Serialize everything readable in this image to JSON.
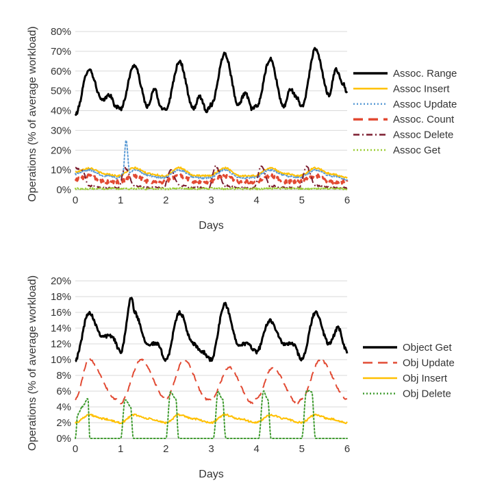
{
  "chart_data": [
    {
      "type": "line",
      "xlabel": "Days",
      "ylabel": "Operations (% of average workload)",
      "xlim": [
        0,
        6
      ],
      "ylim": [
        0,
        80
      ],
      "x_ticks": [
        "0",
        "1",
        "2",
        "3",
        "4",
        "5",
        "6"
      ],
      "y_ticks": [
        "0%",
        "10%",
        "20%",
        "30%",
        "40%",
        "50%",
        "60%",
        "70%",
        "80%"
      ],
      "grid": "horizontal",
      "legend_position": "right",
      "series": [
        {
          "name": "Assoc. Range",
          "color": "#000000",
          "style": "solid",
          "width": 3,
          "x": [
            0.0,
            0.3,
            0.6,
            0.75,
            0.9,
            1.0,
            1.3,
            1.6,
            1.75,
            1.9,
            2.0,
            2.3,
            2.6,
            2.75,
            2.9,
            3.0,
            3.3,
            3.6,
            3.75,
            3.9,
            4.0,
            4.3,
            4.6,
            4.75,
            4.9,
            5.0,
            5.3,
            5.6,
            5.75,
            5.9,
            6.0
          ],
          "values": [
            38,
            61,
            45,
            48,
            42,
            41,
            63,
            42,
            51,
            41,
            41,
            65,
            41,
            47,
            40,
            43,
            69,
            43,
            49,
            41,
            42,
            66,
            42,
            51,
            46,
            42,
            71,
            48,
            61,
            54,
            49
          ]
        },
        {
          "name": "Assoc Insert",
          "color": "#ffc000",
          "style": "solid",
          "width": 2,
          "x": [
            0.0,
            0.3,
            0.65,
            0.95,
            1.3,
            1.65,
            1.95,
            2.3,
            2.65,
            2.95,
            3.3,
            3.65,
            3.95,
            4.3,
            4.65,
            4.95,
            5.3,
            5.65,
            6.0
          ],
          "values": [
            9,
            11,
            8,
            7,
            11,
            8,
            7,
            11,
            7,
            7,
            11,
            7,
            7,
            11,
            8,
            7,
            11,
            8,
            6
          ]
        },
        {
          "name": "Assoc Update",
          "color": "#5b9bd5",
          "style": "dotted",
          "width": 2,
          "x": [
            0.0,
            0.3,
            0.65,
            0.95,
            1.05,
            1.12,
            1.2,
            1.3,
            1.65,
            1.95,
            2.3,
            2.65,
            2.95,
            3.3,
            3.65,
            3.95,
            4.3,
            4.65,
            4.95,
            5.3,
            5.65,
            6.0
          ],
          "values": [
            8,
            10,
            7,
            6,
            8,
            25,
            9,
            10,
            7,
            6,
            10,
            6,
            6,
            10,
            6,
            6,
            10,
            7,
            6,
            10,
            7,
            5
          ]
        },
        {
          "name": "Assoc. Count",
          "color": "#e24a33",
          "style": "dashed",
          "width": 3,
          "x": [
            0.0,
            0.3,
            0.65,
            0.95,
            1.3,
            1.65,
            1.95,
            2.3,
            2.65,
            2.95,
            3.3,
            3.65,
            3.95,
            4.3,
            4.65,
            4.95,
            5.3,
            5.65,
            6.0
          ],
          "values": [
            5,
            7,
            4,
            4,
            7,
            4,
            4,
            7,
            4,
            4,
            7,
            4,
            4,
            7,
            4,
            4,
            7,
            4,
            4
          ]
        },
        {
          "name": "Assoc Delete",
          "color": "#7b1c2e",
          "style": "dashdot",
          "width": 2,
          "x": [
            0.0,
            0.15,
            0.3,
            0.65,
            0.95,
            1.1,
            1.3,
            1.65,
            1.95,
            2.1,
            2.3,
            2.65,
            2.95,
            3.1,
            3.3,
            3.65,
            3.95,
            4.1,
            4.3,
            4.65,
            4.95,
            5.1,
            5.3,
            5.65,
            6.0
          ],
          "values": [
            11,
            10,
            2,
            1,
            1,
            11,
            2,
            1,
            1,
            10,
            2,
            1,
            1,
            12,
            2,
            1,
            1,
            12,
            2,
            1,
            1,
            12,
            2,
            1,
            1
          ]
        },
        {
          "name": "Assoc Get",
          "color": "#9acd32",
          "style": "dotted",
          "width": 2,
          "x": [
            0.0,
            1.0,
            2.0,
            3.0,
            4.0,
            5.0,
            6.0
          ],
          "values": [
            0.5,
            0.6,
            0.5,
            0.6,
            0.5,
            0.6,
            0.5
          ]
        }
      ]
    },
    {
      "type": "line",
      "xlabel": "Days",
      "ylabel": "Operations (% of average workload)",
      "xlim": [
        0,
        6
      ],
      "ylim": [
        0,
        20
      ],
      "x_ticks": [
        "0",
        "1",
        "2",
        "3",
        "4",
        "5",
        "6"
      ],
      "y_ticks": [
        "0%",
        "2%",
        "4%",
        "6%",
        "8%",
        "10%",
        "12%",
        "14%",
        "16%",
        "18%",
        "20%"
      ],
      "grid": "horizontal",
      "legend_position": "right",
      "series": [
        {
          "name": "Object Get",
          "color": "#000000",
          "style": "solid",
          "width": 3,
          "x": [
            0.0,
            0.3,
            0.6,
            0.8,
            1.0,
            1.25,
            1.3,
            1.6,
            1.8,
            2.0,
            2.3,
            2.6,
            2.8,
            3.0,
            3.3,
            3.6,
            3.8,
            4.0,
            4.3,
            4.6,
            4.8,
            5.0,
            5.3,
            5.6,
            5.8,
            6.0
          ],
          "values": [
            10,
            16,
            13,
            13,
            11,
            18,
            16,
            12,
            12,
            10,
            16,
            12,
            11,
            10,
            17,
            12,
            12,
            11,
            15,
            12,
            12,
            10,
            16,
            12,
            14,
            11
          ]
        },
        {
          "name": "Obj Update",
          "color": "#e24a33",
          "style": "dashed",
          "width": 2,
          "x": [
            0.0,
            0.3,
            0.9,
            1.0,
            1.45,
            2.0,
            2.4,
            2.9,
            3.0,
            3.4,
            3.9,
            4.0,
            4.35,
            4.9,
            5.0,
            5.4,
            6.0
          ],
          "values": [
            5,
            10,
            5,
            4.5,
            10,
            5,
            10,
            5,
            5,
            9,
            4.5,
            5,
            9,
            4.5,
            5,
            10,
            5
          ]
        },
        {
          "name": "Obj Insert",
          "color": "#ffc000",
          "style": "solid",
          "width": 2,
          "x": [
            0.0,
            0.3,
            0.6,
            1.0,
            1.3,
            1.6,
            2.0,
            2.3,
            2.6,
            3.0,
            3.3,
            3.6,
            4.0,
            4.3,
            4.6,
            5.0,
            5.3,
            5.6,
            6.0
          ],
          "values": [
            2,
            3,
            2.5,
            2,
            3,
            2.5,
            2,
            3,
            2.5,
            2,
            3,
            2.5,
            2,
            3,
            2.5,
            2,
            3,
            2.5,
            2
          ]
        },
        {
          "name": "Obj Delete",
          "color": "#3f9b2f",
          "style": "dotted",
          "width": 2,
          "x": [
            0.0,
            0.05,
            0.15,
            0.28,
            0.32,
            0.9,
            1.0,
            1.1,
            1.22,
            1.28,
            1.9,
            2.0,
            2.1,
            2.22,
            2.28,
            2.9,
            3.05,
            3.15,
            3.25,
            3.32,
            3.9,
            4.05,
            4.15,
            4.25,
            4.32,
            4.9,
            5.0,
            5.1,
            5.22,
            5.3,
            6.0
          ],
          "values": [
            0,
            3,
            4,
            5,
            0,
            0,
            0,
            5,
            4,
            0,
            0,
            0,
            6,
            5,
            0,
            0,
            0,
            6,
            5,
            0,
            0,
            0,
            6,
            5,
            0,
            0,
            0,
            6,
            6,
            0,
            0
          ]
        }
      ]
    }
  ]
}
